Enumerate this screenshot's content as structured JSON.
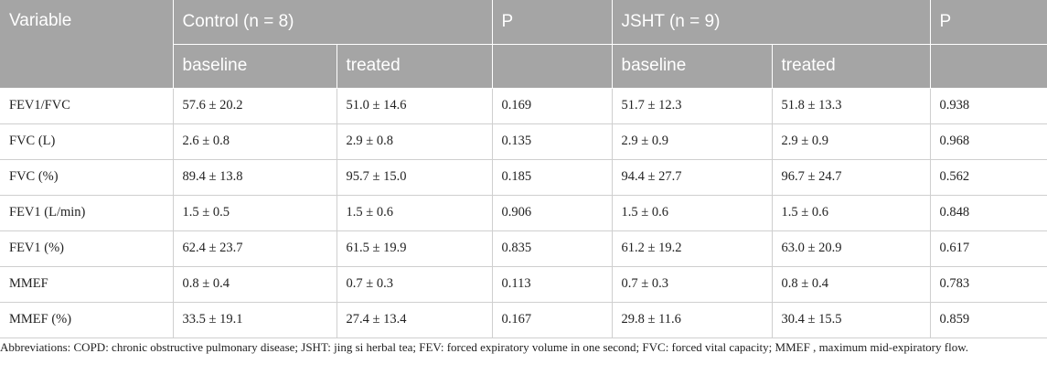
{
  "table": {
    "header": {
      "variable": "Variable",
      "control_group": "Control (n = 8)",
      "p1": "P",
      "jsht_group": "JSHT (n = 9)",
      "p2": "P",
      "sub": [
        "baseline",
        "treated",
        "baseline",
        "treated"
      ]
    },
    "rows": [
      {
        "variable": "FEV1/FVC",
        "control_baseline": "57.6 ± 20.2",
        "control_treated": "51.0 ± 14.6",
        "p_control": "0.169",
        "jsht_baseline": "51.7 ± 12.3",
        "jsht_treated": "51.8 ± 13.3",
        "p_jsht": "0.938"
      },
      {
        "variable": "FVC (L)",
        "control_baseline": "2.6 ± 0.8",
        "control_treated": "2.9 ± 0.8",
        "p_control": "0.135",
        "jsht_baseline": "2.9 ± 0.9",
        "jsht_treated": "2.9 ± 0.9",
        "p_jsht": "0.968"
      },
      {
        "variable": "FVC (%)",
        "control_baseline": "89.4 ± 13.8",
        "control_treated": "95.7 ± 15.0",
        "p_control": "0.185",
        "jsht_baseline": "94.4 ± 27.7",
        "jsht_treated": "96.7 ± 24.7",
        "p_jsht": "0.562"
      },
      {
        "variable": "FEV1 (L/min)",
        "control_baseline": "1.5 ± 0.5",
        "control_treated": "1.5 ± 0.6",
        "p_control": "0.906",
        "jsht_baseline": "1.5 ± 0.6",
        "jsht_treated": "1.5 ± 0.6",
        "p_jsht": "0.848"
      },
      {
        "variable": "FEV1 (%)",
        "control_baseline": "62.4 ± 23.7",
        "control_treated": "61.5 ± 19.9",
        "p_control": "0.835",
        "jsht_baseline": "61.2 ± 19.2",
        "jsht_treated": "63.0 ± 20.9",
        "p_jsht": "0.617"
      },
      {
        "variable": "MMEF",
        "control_baseline": "0.8 ± 0.4",
        "control_treated": "0.7 ± 0.3",
        "p_control": "0.113",
        "jsht_baseline": "0.7 ± 0.3",
        "jsht_treated": "0.8 ± 0.4",
        "p_jsht": "0.783"
      },
      {
        "variable": "MMEF (%)",
        "control_baseline": "33.5 ± 19.1",
        "control_treated": "27.4 ± 13.4",
        "p_control": "0.167",
        "jsht_baseline": "29.8 ± 11.6",
        "jsht_treated": "30.4 ± 15.5",
        "p_jsht": "0.859"
      }
    ]
  },
  "footnote": "Abbreviations: COPD: chronic obstructive pulmonary disease; JSHT: jing si herbal tea; FEV: forced expiratory volume in one second; FVC: forced vital capacity; MMEF , maximum mid-expiratory flow.",
  "colors": {
    "header_background": "#a5a5a5",
    "header_text": "#ffffff",
    "grid_line": "#cfcfcf"
  }
}
